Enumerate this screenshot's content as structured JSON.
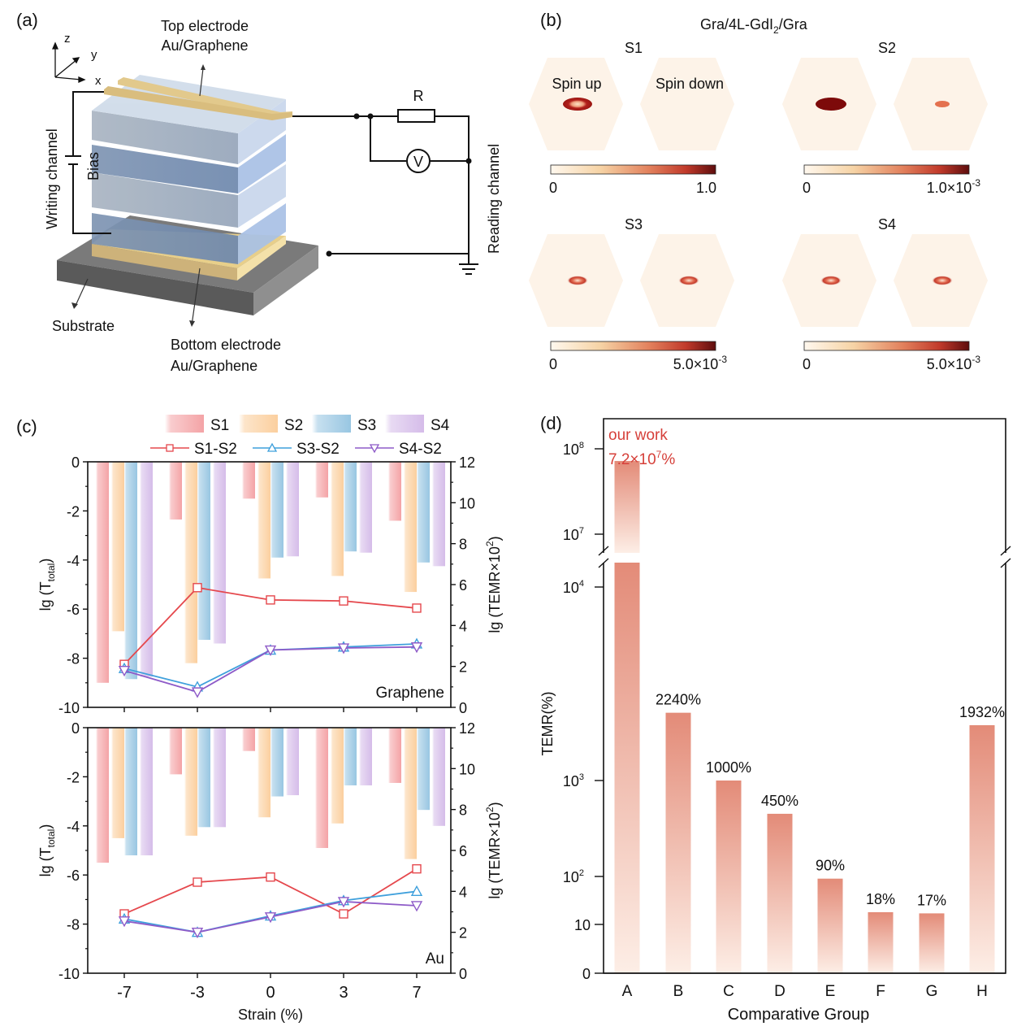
{
  "panels": {
    "a": {
      "label": "(a)",
      "axes": {
        "z": "z",
        "y": "y",
        "x": "x"
      },
      "top_electrode": [
        "Top electrode",
        "Au/Graphene"
      ],
      "bottom_electrode": [
        "Bottom electrode",
        "Au/Graphene"
      ],
      "substrate": "Substrate",
      "writing_channel": "Writing channel",
      "bias": "Bias",
      "reading_channel": "Reading channel",
      "resistor": "R",
      "voltmeter": "V",
      "colors": {
        "electrode": "#e8cf8a",
        "layer_dark": "#7b93b5",
        "layer_light": "#b9c6d8",
        "substrate": "#5f5f5f"
      }
    },
    "b": {
      "label": "(b)",
      "title": "Gra/4L-GdI",
      "title_sub": "2",
      "title_suffix": "/Gra",
      "spin_up": "Spin up",
      "spin_down": "Spin down",
      "states": [
        {
          "name": "S1",
          "cbar_min": "0",
          "cbar_max": "1.0",
          "cbar_exp": ""
        },
        {
          "name": "S2",
          "cbar_min": "0",
          "cbar_max": "1.0×10",
          "cbar_exp": "-3"
        },
        {
          "name": "S3",
          "cbar_min": "0",
          "cbar_max": "5.0×10",
          "cbar_exp": "-3"
        },
        {
          "name": "S4",
          "cbar_min": "0",
          "cbar_max": "5.0×10",
          "cbar_exp": "-3"
        }
      ],
      "colormap": [
        "#fff8ee",
        "#f6d3a5",
        "#e79a72",
        "#c9412d",
        "#5e0d0d"
      ]
    },
    "c": {
      "label": "(c)"
    },
    "d": {
      "label": "(d)"
    }
  },
  "chart_data": [
    {
      "id": "c-graphene",
      "type": "bar",
      "annotation": "Graphene",
      "categories": [
        "-7",
        "-3",
        "0",
        "3",
        "7"
      ],
      "xlabel": "Strain (%)",
      "ylabel": "lg (T",
      "ylabel_sub": "total",
      "ylabel_suffix": ")",
      "y2label": "lg (TEMR×10",
      "y2label_sup": "2",
      "y2label_suffix": ")",
      "ylim": [
        -10,
        0
      ],
      "yticks": [
        "0",
        "-2",
        "-4",
        "-6",
        "-8",
        "-10"
      ],
      "y2lim": [
        0,
        12
      ],
      "y2ticks": [
        "12",
        "10",
        "8",
        "6",
        "4",
        "2",
        "0"
      ],
      "bar_series": [
        {
          "name": "S1",
          "color": "#f4a3a6",
          "values": [
            -9.0,
            -2.35,
            -1.5,
            -1.45,
            -2.4
          ]
        },
        {
          "name": "S2",
          "color": "#fbcf9e",
          "values": [
            -6.9,
            -8.2,
            -4.75,
            -4.65,
            -5.3
          ]
        },
        {
          "name": "S3",
          "color": "#98c6e2",
          "values": [
            -8.85,
            -7.25,
            -3.9,
            -3.65,
            -4.1
          ]
        },
        {
          "name": "S4",
          "color": "#d5bce9",
          "values": [
            -8.75,
            -7.4,
            -3.85,
            -3.7,
            -4.25
          ]
        }
      ],
      "line_series": [
        {
          "name": "S1-S2",
          "color": "#e5484d",
          "marker": "square",
          "values": [
            2.1,
            5.85,
            5.25,
            5.2,
            4.85
          ]
        },
        {
          "name": "S3-S2",
          "color": "#3fa0dc",
          "marker": "triangle-up",
          "values": [
            1.9,
            1.0,
            2.8,
            2.95,
            3.1
          ]
        },
        {
          "name": "S4-S2",
          "color": "#8e5bc8",
          "marker": "triangle-down",
          "values": [
            1.8,
            0.75,
            2.8,
            2.9,
            2.95
          ]
        }
      ]
    },
    {
      "id": "c-au",
      "type": "bar",
      "annotation": "Au",
      "categories": [
        "-7",
        "-3",
        "0",
        "3",
        "7"
      ],
      "xlabel": "Strain (%)",
      "ylabel": "lg (T",
      "ylabel_sub": "total",
      "ylabel_suffix": ")",
      "y2label": "lg (TEMR×10",
      "y2label_sup": "2",
      "y2label_suffix": ")",
      "ylim": [
        -10,
        0
      ],
      "yticks": [
        "0",
        "-2",
        "-4",
        "-6",
        "-8",
        "-10"
      ],
      "y2lim": [
        0,
        12
      ],
      "y2ticks": [
        "12",
        "10",
        "8",
        "6",
        "4",
        "2",
        "0"
      ],
      "bar_series": [
        {
          "name": "S1",
          "color": "#f4a3a6",
          "values": [
            -5.5,
            -1.9,
            -0.95,
            -4.9,
            -2.25
          ]
        },
        {
          "name": "S2",
          "color": "#fbcf9e",
          "values": [
            -4.5,
            -4.4,
            -3.65,
            -3.9,
            -5.35
          ]
        },
        {
          "name": "S3",
          "color": "#98c6e2",
          "values": [
            -5.2,
            -4.05,
            -2.8,
            -2.35,
            -3.35
          ]
        },
        {
          "name": "S4",
          "color": "#d5bce9",
          "values": [
            -5.2,
            -4.05,
            -2.75,
            -2.35,
            -4.0
          ]
        }
      ],
      "line_series": [
        {
          "name": "S1-S2",
          "color": "#e5484d",
          "marker": "square",
          "values": [
            2.9,
            4.45,
            4.7,
            2.9,
            5.1
          ]
        },
        {
          "name": "S3-S2",
          "color": "#3fa0dc",
          "marker": "triangle-up",
          "values": [
            2.65,
            2.0,
            2.8,
            3.55,
            4.0
          ]
        },
        {
          "name": "S4-S2",
          "color": "#8e5bc8",
          "marker": "triangle-down",
          "values": [
            2.55,
            2.0,
            2.75,
            3.5,
            3.3
          ]
        }
      ]
    },
    {
      "id": "d-temr",
      "type": "bar",
      "title": "",
      "xlabel": "Comparative Group",
      "ylabel": "TEMR(%)",
      "scale": "log (broken axis)",
      "categories": [
        "A",
        "B",
        "C",
        "D",
        "E",
        "F",
        "G",
        "H"
      ],
      "values": [
        72000000,
        2240,
        1000,
        450,
        90,
        18,
        17,
        1932
      ],
      "value_labels": [
        "",
        "2240%",
        "1000%",
        "450%",
        "90%",
        "18%",
        "17%",
        "1932%"
      ],
      "yticks": [
        {
          "label": "0",
          "sup": ""
        },
        {
          "label": "10",
          "sup": ""
        },
        {
          "label": "10",
          "sup": "2"
        },
        {
          "label": "10",
          "sup": "3"
        },
        {
          "label": "10",
          "sup": "4"
        },
        {
          "label": "10",
          "sup": "7"
        },
        {
          "label": "10",
          "sup": "8"
        }
      ],
      "highlight": {
        "line1": "our work",
        "line2": "7.2×10",
        "sup": "7",
        "suffix": "%",
        "color": "#d6403a"
      },
      "bar_color_top": "#e38b78",
      "bar_color_bottom": "#fdeee6"
    }
  ],
  "legend": {
    "bars": [
      "S1",
      "S2",
      "S3",
      "S4"
    ],
    "lines": [
      "S1-S2",
      "S3-S2",
      "S4-S2"
    ]
  }
}
